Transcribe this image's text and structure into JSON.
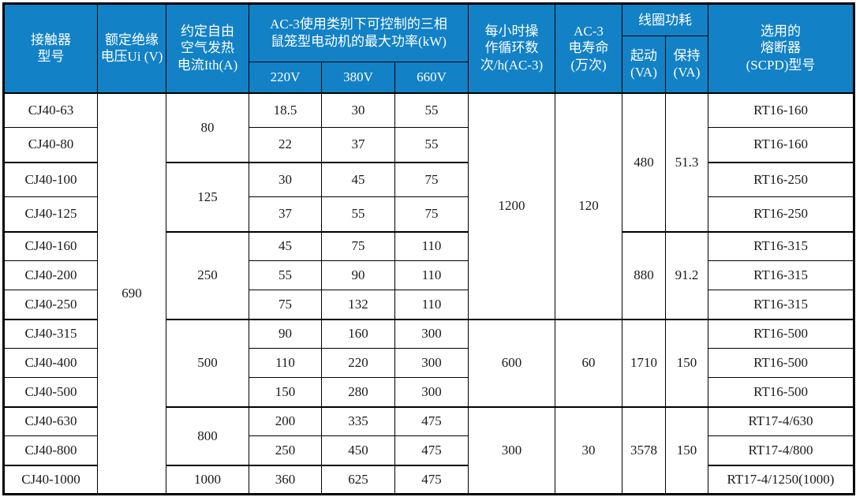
{
  "colors": {
    "header_bg": "#1281c6",
    "header_text": "#ffffff",
    "border": "#000000",
    "body_text": "#1a1a1a",
    "body_bg": "#ffffff"
  },
  "table": {
    "header": {
      "model": "接触器\n型号",
      "ui": "额定绝缘\n电压Ui (V)",
      "ith": "约定自由\n空气发热\n电流Ith(A)",
      "ac3_power": "AC-3使用类别下可控制的三相\n鼠笼型电动机的最大功率(kW)",
      "v220": "220V",
      "v380": "380V",
      "v660": "660V",
      "cycles": "每小时操\n作循环数\n次/h(AC-3)",
      "life": "AC-3\n电寿命\n(万次)",
      "coil": "线圈功耗",
      "start": "起动\n(VA)",
      "hold": "保持\n(VA)",
      "fuse": "选用的\n熔断器\n(SCPD)型号"
    },
    "rows": [
      {
        "group": false,
        "cells": [
          {
            "k": "model",
            "v": "CJ40-63"
          },
          {
            "k": "ui",
            "v": "690",
            "rs": 13
          },
          {
            "k": "ith",
            "v": "80",
            "rs": 2
          },
          {
            "k": "p220",
            "v": "18.5"
          },
          {
            "k": "p380",
            "v": "30"
          },
          {
            "k": "p660",
            "v": "55"
          },
          {
            "k": "cycles",
            "v": "1200",
            "rs": 7
          },
          {
            "k": "life",
            "v": "120",
            "rs": 7
          },
          {
            "k": "start",
            "v": "480",
            "rs": 4
          },
          {
            "k": "hold",
            "v": "51.3",
            "rs": 4
          },
          {
            "k": "fuse",
            "v": "RT16-160"
          }
        ]
      },
      {
        "group": false,
        "cells": [
          {
            "k": "model",
            "v": "CJ40-80"
          },
          {
            "k": "p220",
            "v": "22"
          },
          {
            "k": "p380",
            "v": "37"
          },
          {
            "k": "p660",
            "v": "55"
          },
          {
            "k": "fuse",
            "v": "RT16-160"
          }
        ]
      },
      {
        "group": true,
        "cells": [
          {
            "k": "model",
            "v": "CJ40-100"
          },
          {
            "k": "ith",
            "v": "125",
            "rs": 2
          },
          {
            "k": "p220",
            "v": "30"
          },
          {
            "k": "p380",
            "v": "45"
          },
          {
            "k": "p660",
            "v": "75"
          },
          {
            "k": "fuse",
            "v": "RT16-250"
          }
        ]
      },
      {
        "group": false,
        "cells": [
          {
            "k": "model",
            "v": "CJ40-125"
          },
          {
            "k": "p220",
            "v": "37"
          },
          {
            "k": "p380",
            "v": "55"
          },
          {
            "k": "p660",
            "v": "75"
          },
          {
            "k": "fuse",
            "v": "RT16-250"
          }
        ]
      },
      {
        "group": true,
        "cells": [
          {
            "k": "model",
            "v": "CJ40-160"
          },
          {
            "k": "ith",
            "v": "250",
            "rs": 3
          },
          {
            "k": "p220",
            "v": "45"
          },
          {
            "k": "p380",
            "v": "75"
          },
          {
            "k": "p660",
            "v": "110"
          },
          {
            "k": "start",
            "v": "880",
            "rs": 3
          },
          {
            "k": "hold",
            "v": "91.2",
            "rs": 3
          },
          {
            "k": "fuse",
            "v": "RT16-315"
          }
        ]
      },
      {
        "group": false,
        "cells": [
          {
            "k": "model",
            "v": "CJ40-200"
          },
          {
            "k": "p220",
            "v": "55"
          },
          {
            "k": "p380",
            "v": "90"
          },
          {
            "k": "p660",
            "v": "110"
          },
          {
            "k": "fuse",
            "v": "RT16-315"
          }
        ]
      },
      {
        "group": false,
        "cells": [
          {
            "k": "model",
            "v": "CJ40-250"
          },
          {
            "k": "p220",
            "v": "75"
          },
          {
            "k": "p380",
            "v": "132"
          },
          {
            "k": "p660",
            "v": "110"
          },
          {
            "k": "fuse",
            "v": "RT16-315"
          }
        ]
      },
      {
        "group": true,
        "cells": [
          {
            "k": "model",
            "v": "CJ40-315"
          },
          {
            "k": "ith",
            "v": "500",
            "rs": 3
          },
          {
            "k": "p220",
            "v": "90"
          },
          {
            "k": "p380",
            "v": "160"
          },
          {
            "k": "p660",
            "v": "300"
          },
          {
            "k": "cycles",
            "v": "600",
            "rs": 3
          },
          {
            "k": "life",
            "v": "60",
            "rs": 3
          },
          {
            "k": "start",
            "v": "1710",
            "rs": 3
          },
          {
            "k": "hold",
            "v": "150",
            "rs": 3
          },
          {
            "k": "fuse",
            "v": "RT16-500"
          }
        ]
      },
      {
        "group": false,
        "cells": [
          {
            "k": "model",
            "v": "CJ40-400"
          },
          {
            "k": "p220",
            "v": "110"
          },
          {
            "k": "p380",
            "v": "220"
          },
          {
            "k": "p660",
            "v": "300"
          },
          {
            "k": "fuse",
            "v": "RT16-500"
          }
        ]
      },
      {
        "group": false,
        "cells": [
          {
            "k": "model",
            "v": "CJ40-500"
          },
          {
            "k": "p220",
            "v": "150"
          },
          {
            "k": "p380",
            "v": "280"
          },
          {
            "k": "p660",
            "v": "300"
          },
          {
            "k": "fuse",
            "v": "RT16-500"
          }
        ]
      },
      {
        "group": true,
        "cells": [
          {
            "k": "model",
            "v": "CJ40-630"
          },
          {
            "k": "ith",
            "v": "800",
            "rs": 2
          },
          {
            "k": "p220",
            "v": "200"
          },
          {
            "k": "p380",
            "v": "335"
          },
          {
            "k": "p660",
            "v": "475"
          },
          {
            "k": "cycles",
            "v": "300",
            "rs": 3
          },
          {
            "k": "life",
            "v": "30",
            "rs": 3
          },
          {
            "k": "start",
            "v": "3578",
            "rs": 3
          },
          {
            "k": "hold",
            "v": "150",
            "rs": 3
          },
          {
            "k": "fuse",
            "v": "RT17-4/630"
          }
        ]
      },
      {
        "group": false,
        "cells": [
          {
            "k": "model",
            "v": "CJ40-800"
          },
          {
            "k": "p220",
            "v": "250"
          },
          {
            "k": "p380",
            "v": "450"
          },
          {
            "k": "p660",
            "v": "475"
          },
          {
            "k": "fuse",
            "v": "RT17-4/800"
          }
        ]
      },
      {
        "group": true,
        "cells": [
          {
            "k": "model",
            "v": "CJ40-1000"
          },
          {
            "k": "ith",
            "v": "1000"
          },
          {
            "k": "p220",
            "v": "360"
          },
          {
            "k": "p380",
            "v": "625"
          },
          {
            "k": "p660",
            "v": "475"
          },
          {
            "k": "fuse",
            "v": "RT17-4/1250(1000)"
          }
        ]
      }
    ]
  },
  "chart_data": {
    "type": "table",
    "title": "",
    "columns": [
      "接触器型号",
      "额定绝缘电压Ui (V)",
      "约定自由空气发热电流Ith(A)",
      "AC-3最大功率(kW) 220V",
      "AC-3最大功率(kW) 380V",
      "AC-3最大功率(kW) 660V",
      "每小时操作循环数次/h(AC-3)",
      "AC-3电寿命(万次)",
      "线圈功耗 起动(VA)",
      "线圈功耗 保持(VA)",
      "选用的熔断器(SCPD)型号"
    ],
    "rows": [
      [
        "CJ40-63",
        690,
        80,
        18.5,
        30,
        55,
        1200,
        120,
        480,
        51.3,
        "RT16-160"
      ],
      [
        "CJ40-80",
        690,
        80,
        22,
        37,
        55,
        1200,
        120,
        480,
        51.3,
        "RT16-160"
      ],
      [
        "CJ40-100",
        690,
        125,
        30,
        45,
        75,
        1200,
        120,
        480,
        51.3,
        "RT16-250"
      ],
      [
        "CJ40-125",
        690,
        125,
        37,
        55,
        75,
        1200,
        120,
        480,
        51.3,
        "RT16-250"
      ],
      [
        "CJ40-160",
        690,
        250,
        45,
        75,
        110,
        1200,
        120,
        880,
        91.2,
        "RT16-315"
      ],
      [
        "CJ40-200",
        690,
        250,
        55,
        90,
        110,
        1200,
        120,
        880,
        91.2,
        "RT16-315"
      ],
      [
        "CJ40-250",
        690,
        250,
        75,
        132,
        110,
        1200,
        120,
        880,
        91.2,
        "RT16-315"
      ],
      [
        "CJ40-315",
        690,
        500,
        90,
        160,
        300,
        600,
        60,
        1710,
        150,
        "RT16-500"
      ],
      [
        "CJ40-400",
        690,
        500,
        110,
        220,
        300,
        600,
        60,
        1710,
        150,
        "RT16-500"
      ],
      [
        "CJ40-500",
        690,
        500,
        150,
        280,
        300,
        600,
        60,
        1710,
        150,
        "RT16-500"
      ],
      [
        "CJ40-630",
        690,
        800,
        200,
        335,
        475,
        300,
        30,
        3578,
        150,
        "RT17-4/630"
      ],
      [
        "CJ40-800",
        690,
        800,
        250,
        450,
        475,
        300,
        30,
        3578,
        150,
        "RT17-4/800"
      ],
      [
        "CJ40-1000",
        690,
        1000,
        360,
        625,
        475,
        300,
        30,
        3578,
        150,
        "RT17-4/1250(1000)"
      ]
    ]
  }
}
